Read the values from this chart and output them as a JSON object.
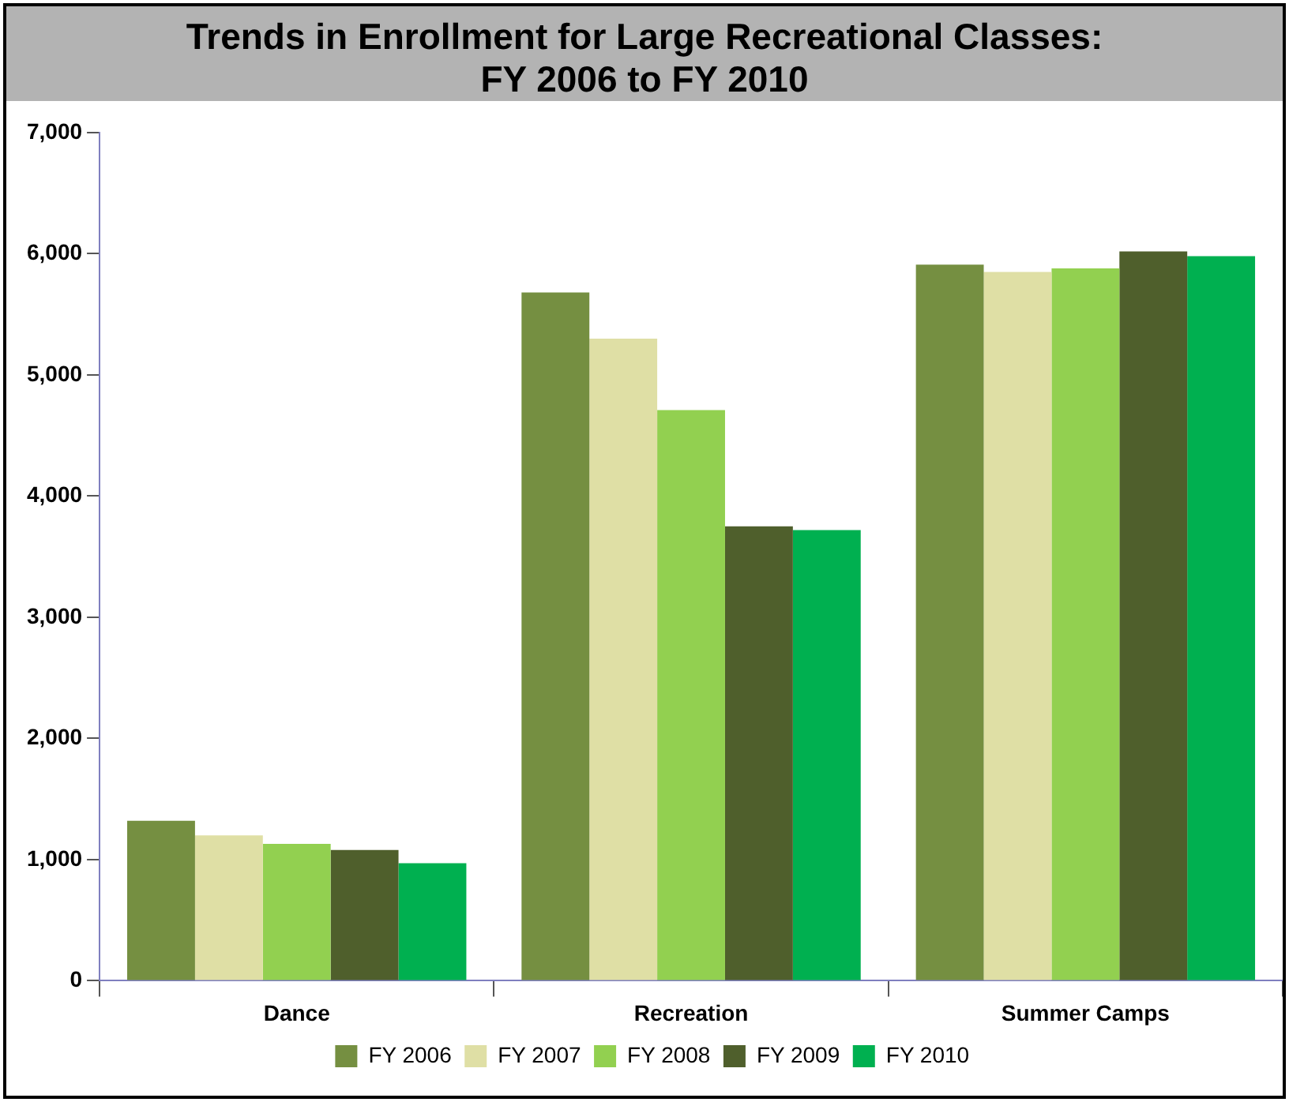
{
  "chart_data": {
    "type": "bar",
    "title": "Trends in Enrollment for Large Recreational Classes: FY 2006 to FY 2010",
    "categories": [
      "Dance",
      "Recreation",
      "Summer Camps"
    ],
    "series": [
      {
        "name": "FY 2006",
        "color": "#758f41",
        "values": [
          1320,
          5680,
          5910
        ]
      },
      {
        "name": "FY 2007",
        "color": "#dfdfa5",
        "values": [
          1200,
          5300,
          5850
        ]
      },
      {
        "name": "FY 2008",
        "color": "#92d050",
        "values": [
          1130,
          4710,
          5880
        ]
      },
      {
        "name": "FY 2009",
        "color": "#4f5f2c",
        "values": [
          1080,
          3750,
          6020
        ]
      },
      {
        "name": "FY 2010",
        "color": "#00b050",
        "values": [
          970,
          3720,
          5980
        ]
      }
    ],
    "ylim": [
      0,
      7000
    ],
    "yticks": [
      0,
      {
        "value": 1000,
        "label": "1,000"
      },
      {
        "value": 2000,
        "label": "2,000"
      },
      {
        "value": 3000,
        "label": "3,000"
      },
      {
        "value": 4000,
        "label": "4,000"
      },
      {
        "value": 5000,
        "label": "5,000"
      },
      {
        "value": 6000,
        "label": "6,000"
      },
      {
        "value": 7000,
        "label": "7,000"
      }
    ],
    "grid": false,
    "legend": "bottom"
  }
}
